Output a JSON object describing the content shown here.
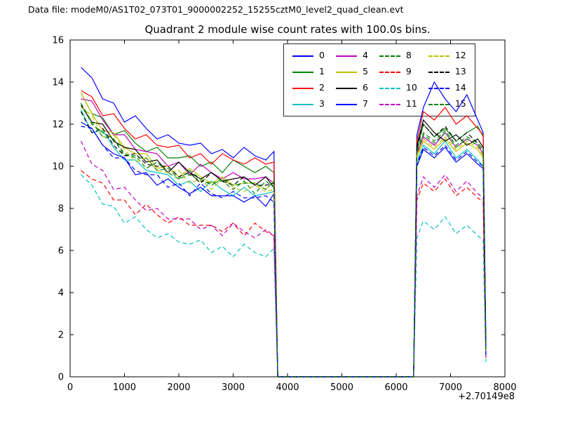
{
  "header": {
    "text": "Data file: modeM0/AS1T02_073T01_9000002252_15255cztM0_level2_quad_clean.evt"
  },
  "chart_data": {
    "type": "line",
    "title": "Quadrant 2 module wise count rates with 100.0s bins.",
    "xlabel": "",
    "ylabel": "",
    "x_offset_label": "+2.70149e8",
    "xlim": [
      0,
      8000
    ],
    "ylim": [
      0,
      16
    ],
    "x_ticks": [
      0,
      1000,
      2000,
      3000,
      4000,
      5000,
      6000,
      7000,
      8000
    ],
    "y_ticks": [
      0,
      2,
      4,
      6,
      8,
      10,
      12,
      14,
      16
    ],
    "grid": false,
    "legend_position": "upper center-right",
    "legend_columns": 4,
    "x": [
      200,
      400,
      600,
      800,
      1000,
      1200,
      1400,
      1600,
      1800,
      2000,
      2200,
      2400,
      2600,
      2800,
      3000,
      3200,
      3400,
      3600,
      3750,
      3820,
      6320,
      6380,
      6500,
      6700,
      6900,
      7100,
      7300,
      7500,
      7600,
      7650
    ],
    "series": [
      {
        "name": "0",
        "color": "#0000ff",
        "style": "solid",
        "values": [
          14.7,
          14.2,
          13.2,
          13.0,
          12.1,
          12.4,
          11.8,
          11.3,
          11.5,
          11.1,
          11.0,
          11.1,
          10.6,
          10.8,
          10.4,
          10.9,
          10.5,
          10.3,
          10.7,
          0,
          0,
          11.5,
          12.8,
          14.0,
          13.2,
          12.6,
          13.4,
          12.2,
          11.6,
          1.5
        ]
      },
      {
        "name": "1",
        "color": "#007f00",
        "style": "solid",
        "values": [
          13.5,
          12.5,
          12.3,
          11.5,
          11.7,
          11.1,
          10.7,
          10.9,
          10.4,
          10.4,
          10.5,
          10.0,
          10.2,
          9.7,
          10.3,
          10.0,
          9.7,
          10.0,
          9.7,
          0,
          0,
          10.8,
          12.0,
          11.4,
          11.8,
          11.2,
          11.6,
          11.9,
          11.4,
          1.3
        ]
      },
      {
        "name": "2",
        "color": "#ff0000",
        "style": "solid",
        "values": [
          13.6,
          13.3,
          12.4,
          12.5,
          11.8,
          11.3,
          11.5,
          11.0,
          10.9,
          11.0,
          10.4,
          10.6,
          10.1,
          10.6,
          10.3,
          10.1,
          10.4,
          10.1,
          10.2,
          0,
          0,
          11.2,
          12.6,
          12.2,
          12.8,
          12.0,
          12.4,
          11.8,
          11.5,
          1.4
        ]
      },
      {
        "name": "3",
        "color": "#00bfbf",
        "style": "solid",
        "values": [
          12.7,
          11.6,
          11.7,
          10.9,
          10.3,
          10.3,
          9.8,
          9.7,
          9.6,
          9.1,
          9.3,
          8.8,
          9.3,
          8.9,
          8.6,
          9.0,
          8.6,
          8.7,
          8.8,
          0,
          0,
          10.2,
          11.0,
          10.6,
          11.2,
          10.4,
          10.8,
          10.3,
          10.0,
          1.1
        ]
      },
      {
        "name": "4",
        "color": "#bf00bf",
        "style": "solid",
        "values": [
          13.2,
          13.1,
          12.2,
          11.5,
          11.5,
          10.8,
          10.7,
          10.6,
          10.0,
          10.2,
          9.6,
          10.1,
          9.7,
          9.4,
          9.7,
          9.4,
          9.4,
          9.5,
          9.2,
          0,
          0,
          10.6,
          11.4,
          11.0,
          11.6,
          10.9,
          11.3,
          11.0,
          10.6,
          1.2
        ]
      },
      {
        "name": "5",
        "color": "#bfbf00",
        "style": "solid",
        "values": [
          13.5,
          12.5,
          11.7,
          11.6,
          10.9,
          10.6,
          10.6,
          9.9,
          10.0,
          9.5,
          9.9,
          9.5,
          9.2,
          9.5,
          9.1,
          9.2,
          9.2,
          8.9,
          9.3,
          0,
          0,
          10.4,
          11.2,
          10.8,
          11.3,
          10.7,
          11.1,
          10.8,
          10.4,
          1.2
        ]
      },
      {
        "name": "6",
        "color": "#000000",
        "style": "solid",
        "values": [
          12.9,
          12.1,
          12.0,
          11.2,
          10.9,
          10.8,
          10.2,
          10.3,
          9.7,
          10.2,
          9.7,
          9.4,
          9.7,
          9.3,
          9.4,
          9.5,
          9.1,
          9.5,
          9.0,
          0,
          0,
          11.0,
          12.2,
          11.6,
          11.2,
          11.5,
          11.0,
          11.3,
          10.9,
          1.3
        ]
      },
      {
        "name": "7",
        "color": "#0000ff",
        "style": "solid",
        "values": [
          12.1,
          11.8,
          11.0,
          10.6,
          10.4,
          9.6,
          9.7,
          9.1,
          9.4,
          9.0,
          8.7,
          9.0,
          8.6,
          8.6,
          8.6,
          8.3,
          8.6,
          8.1,
          8.7,
          0,
          0,
          10.0,
          10.8,
          10.4,
          10.9,
          10.2,
          10.6,
          10.1,
          9.9,
          1.0
        ]
      },
      {
        "name": "8",
        "color": "#007f00",
        "style": "dashed",
        "values": [
          13.0,
          12.0,
          11.6,
          11.3,
          10.5,
          10.5,
          9.9,
          10.2,
          9.7,
          9.4,
          9.6,
          9.3,
          9.2,
          9.3,
          8.9,
          9.3,
          8.7,
          9.3,
          9.0,
          0,
          0,
          10.7,
          11.5,
          11.1,
          11.6,
          10.9,
          11.3,
          11.0,
          10.7,
          1.2
        ]
      },
      {
        "name": "9",
        "color": "#ff0000",
        "style": "dashed",
        "values": [
          9.8,
          9.4,
          9.2,
          8.4,
          8.4,
          7.7,
          8.2,
          7.7,
          7.3,
          7.6,
          7.2,
          7.2,
          7.2,
          6.9,
          7.3,
          6.7,
          7.3,
          6.9,
          6.7,
          0,
          0,
          8.4,
          9.2,
          8.8,
          9.4,
          8.6,
          9.0,
          8.5,
          8.3,
          0.9
        ]
      },
      {
        "name": "10",
        "color": "#00bfbf",
        "style": "dashed",
        "values": [
          9.6,
          9.1,
          8.2,
          8.1,
          7.3,
          7.6,
          7.0,
          6.6,
          6.8,
          6.4,
          6.3,
          6.5,
          5.9,
          6.2,
          5.7,
          6.3,
          5.9,
          5.7,
          6.1,
          0,
          0,
          6.6,
          7.4,
          7.0,
          7.6,
          6.8,
          7.2,
          6.7,
          6.5,
          0.7
        ]
      },
      {
        "name": "11",
        "color": "#bf00bf",
        "style": "dashed",
        "values": [
          11.2,
          10.1,
          9.8,
          8.9,
          9.0,
          8.4,
          7.9,
          8.0,
          7.5,
          7.5,
          7.5,
          7.0,
          7.2,
          6.7,
          7.3,
          6.9,
          6.6,
          7.0,
          6.7,
          0,
          0,
          8.6,
          9.5,
          9.0,
          9.6,
          8.8,
          9.3,
          8.7,
          8.5,
          0.9
        ]
      },
      {
        "name": "12",
        "color": "#bfbf00",
        "style": "dashed",
        "values": [
          12.8,
          12.4,
          11.4,
          11.5,
          10.8,
          10.2,
          10.4,
          9.8,
          9.7,
          9.8,
          9.2,
          9.4,
          8.9,
          9.4,
          9.0,
          8.8,
          9.1,
          8.8,
          8.9,
          0,
          0,
          10.5,
          11.3,
          10.9,
          11.4,
          10.8,
          11.2,
          10.9,
          10.5,
          1.2
        ]
      },
      {
        "name": "13",
        "color": "#000000",
        "style": "dashed",
        "values": [
          12.6,
          11.6,
          11.8,
          11.0,
          10.5,
          10.6,
          10.1,
          10.0,
          10.0,
          9.5,
          9.7,
          9.2,
          9.7,
          9.3,
          9.1,
          9.5,
          9.1,
          9.1,
          9.2,
          0,
          0,
          10.9,
          12.0,
          11.4,
          11.9,
          11.2,
          11.6,
          11.1,
          10.8,
          1.3
        ]
      },
      {
        "name": "14",
        "color": "#0000ff",
        "style": "dashed",
        "values": [
          11.9,
          11.8,
          11.0,
          10.4,
          10.4,
          9.8,
          9.6,
          9.6,
          9.0,
          9.2,
          8.6,
          9.2,
          8.7,
          8.5,
          8.8,
          8.5,
          8.5,
          8.6,
          8.3,
          0,
          0,
          10.1,
          10.9,
          10.5,
          11.0,
          10.3,
          10.7,
          10.2,
          10.0,
          1.0
        ]
      },
      {
        "name": "15",
        "color": "#007f00",
        "style": "dashed",
        "values": [
          13.0,
          12.1,
          11.4,
          11.3,
          10.6,
          10.4,
          10.4,
          9.8,
          9.9,
          9.4,
          9.8,
          9.4,
          9.1,
          9.4,
          9.1,
          9.2,
          9.2,
          8.9,
          9.3,
          0,
          0,
          10.8,
          11.6,
          11.2,
          11.7,
          11.0,
          11.4,
          11.1,
          10.8,
          1.2
        ]
      }
    ]
  }
}
